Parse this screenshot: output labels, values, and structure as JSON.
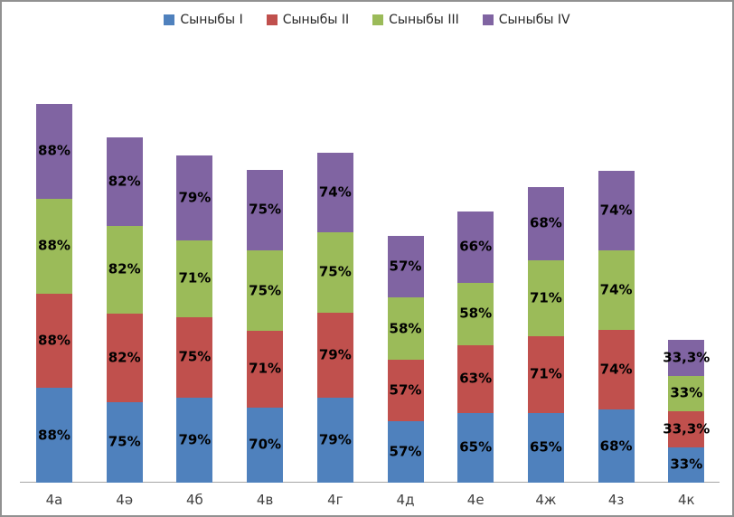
{
  "chart_data": {
    "type": "bar",
    "variant": "stacked-column",
    "title": "",
    "xlabel": "",
    "ylabel": "",
    "grid": false,
    "data_labels": true,
    "legend_position": "top",
    "categories": [
      "4а",
      "4ә",
      "4б",
      "4в",
      "4г",
      "4д",
      "4е",
      "4ж",
      "4з",
      "4к"
    ],
    "series": [
      {
        "name": "Сыныбы I",
        "color": "#4F81BD",
        "values": [
          88,
          75,
          79,
          70,
          79,
          57,
          65,
          65,
          68,
          33
        ],
        "labels": [
          "88%",
          "75%",
          "79%",
          "70%",
          "79%",
          "57%",
          "65%",
          "65%",
          "68%",
          "33%"
        ]
      },
      {
        "name": "Сыныбы II",
        "color": "#C0504D",
        "values": [
          88,
          82,
          75,
          71,
          79,
          57,
          63,
          71,
          74,
          33.3
        ],
        "labels": [
          "88%",
          "82%",
          "75%",
          "71%",
          "79%",
          "57%",
          "63%",
          "71%",
          "74%",
          "33,3%"
        ]
      },
      {
        "name": "Сыныбы III",
        "color": "#9BBB59",
        "values": [
          88,
          82,
          71,
          75,
          75,
          58,
          58,
          71,
          74,
          33
        ],
        "labels": [
          "88%",
          "82%",
          "71%",
          "75%",
          "75%",
          "58%",
          "58%",
          "71%",
          "74%",
          "33%"
        ]
      },
      {
        "name": "Сыныбы IV",
        "color": "#8064A2",
        "values": [
          88,
          82,
          79,
          75,
          74,
          57,
          66,
          68,
          74,
          33.3
        ],
        "labels": [
          "88%",
          "82%",
          "79%",
          "75%",
          "74%",
          "57%",
          "66%",
          "68%",
          "74%",
          "33,3%"
        ]
      }
    ],
    "colors": {
      "background": "#FFFFFF",
      "frame_border": "#919191",
      "axis_line": "#A6A6A6",
      "data_label_text": "#000000",
      "category_label_text": "#404040",
      "legend_text": "#262626"
    }
  }
}
